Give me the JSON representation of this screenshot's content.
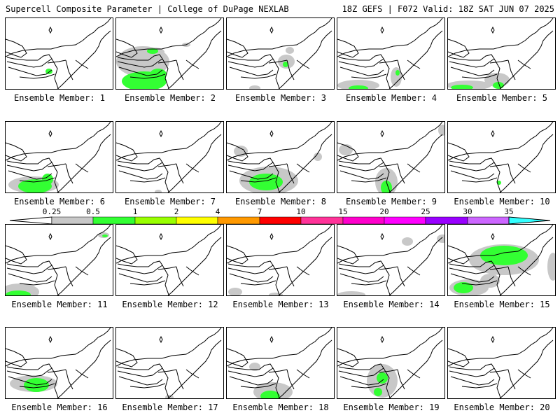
{
  "header": {
    "left": "Supercell Composite Parameter | College of DuPage NEXLAB",
    "right": "18Z GEFS | F072 Valid: 18Z SAT JUN 07 2025"
  },
  "colors": {
    "map_line": "#000000",
    "gray": "#c8c8c8",
    "green": "#33ff33",
    "yellow_green": "#99ff00",
    "yellow": "#ffff33",
    "orange": "#ff9900",
    "red": "#ff0000",
    "magenta": "#ff33cc"
  },
  "colorbar": {
    "labels": [
      "0.25",
      "0.5",
      "1",
      "2",
      "4",
      "7",
      "10",
      "15",
      "20",
      "25",
      "30",
      "35"
    ],
    "colors": [
      "#ffffff",
      "#c8c8c8",
      "#33ff33",
      "#99ff00",
      "#ffff00",
      "#ff9900",
      "#ff0000",
      "#ff3399",
      "#ff00cc",
      "#ff00ff",
      "#9900ff",
      "#cc66ff",
      "#33ffff"
    ]
  },
  "panels": [
    {
      "label": "Ensemble Member: 1",
      "shades": [
        {
          "c": "green",
          "x": 62,
          "y": 76,
          "rx": 5,
          "ry": 4
        }
      ]
    },
    {
      "label": "Ensemble Member: 2",
      "shades": [
        {
          "c": "gray",
          "x": 38,
          "y": 62,
          "rx": 38,
          "ry": 22
        },
        {
          "c": "green",
          "x": 40,
          "y": 90,
          "rx": 32,
          "ry": 14
        },
        {
          "c": "green",
          "x": 60,
          "y": 80,
          "rx": 12,
          "ry": 8
        },
        {
          "c": "gray",
          "x": 55,
          "y": 48,
          "rx": 14,
          "ry": 6
        },
        {
          "c": "green",
          "x": 52,
          "y": 47,
          "rx": 8,
          "ry": 4
        },
        {
          "c": "gray",
          "x": 100,
          "y": 38,
          "rx": 6,
          "ry": 3
        }
      ]
    },
    {
      "label": "Ensemble Member: 3",
      "shades": [
        {
          "c": "gray",
          "x": 85,
          "y": 62,
          "rx": 12,
          "ry": 10
        },
        {
          "c": "green",
          "x": 84,
          "y": 66,
          "rx": 4,
          "ry": 4
        },
        {
          "c": "gray",
          "x": 40,
          "y": 100,
          "rx": 8,
          "ry": 4
        },
        {
          "c": "gray",
          "x": 90,
          "y": 46,
          "rx": 6,
          "ry": 5
        }
      ]
    },
    {
      "label": "Ensemble Member: 4",
      "shades": [
        {
          "c": "gray",
          "x": 30,
          "y": 96,
          "rx": 30,
          "ry": 8
        },
        {
          "c": "green",
          "x": 30,
          "y": 100,
          "rx": 14,
          "ry": 4
        },
        {
          "c": "gray",
          "x": 84,
          "y": 84,
          "rx": 8,
          "ry": 14
        },
        {
          "c": "green",
          "x": 86,
          "y": 78,
          "rx": 3,
          "ry": 4
        }
      ]
    },
    {
      "label": "Ensemble Member: 5",
      "shades": [
        {
          "c": "gray",
          "x": 30,
          "y": 96,
          "rx": 32,
          "ry": 7
        },
        {
          "c": "green",
          "x": 20,
          "y": 99,
          "rx": 16,
          "ry": 4
        },
        {
          "c": "gray",
          "x": 70,
          "y": 88,
          "rx": 18,
          "ry": 10
        },
        {
          "c": "green",
          "x": 72,
          "y": 96,
          "rx": 8,
          "ry": 5
        }
      ]
    },
    {
      "label": "Ensemble Member: 6",
      "shades": [
        {
          "c": "gray",
          "x": 40,
          "y": 90,
          "rx": 36,
          "ry": 12
        },
        {
          "c": "green",
          "x": 42,
          "y": 92,
          "rx": 24,
          "ry": 10
        },
        {
          "c": "green",
          "x": 60,
          "y": 82,
          "rx": 8,
          "ry": 8
        }
      ]
    },
    {
      "label": "Ensemble Member: 7",
      "shades": [
        {
          "c": "gray",
          "x": 60,
          "y": 100,
          "rx": 5,
          "ry": 3
        }
      ]
    },
    {
      "label": "Ensemble Member: 8",
      "shades": [
        {
          "c": "gray",
          "x": 60,
          "y": 84,
          "rx": 42,
          "ry": 20
        },
        {
          "c": "green",
          "x": 56,
          "y": 86,
          "rx": 24,
          "ry": 12
        },
        {
          "c": "gray",
          "x": 20,
          "y": 42,
          "rx": 10,
          "ry": 8
        },
        {
          "c": "gray",
          "x": 130,
          "y": 50,
          "rx": 6,
          "ry": 6
        }
      ]
    },
    {
      "label": "Ensemble Member: 9",
      "shades": [
        {
          "c": "gray",
          "x": 70,
          "y": 86,
          "rx": 16,
          "ry": 20
        },
        {
          "c": "green",
          "x": 70,
          "y": 94,
          "rx": 8,
          "ry": 10
        },
        {
          "c": "gray",
          "x": 12,
          "y": 40,
          "rx": 10,
          "ry": 8
        },
        {
          "c": "gray",
          "x": 150,
          "y": 12,
          "rx": 6,
          "ry": 8
        }
      ]
    },
    {
      "label": "Ensemble Member: 10",
      "shades": [
        {
          "c": "green",
          "x": 73,
          "y": 87,
          "rx": 3,
          "ry": 3
        }
      ]
    },
    {
      "label": "Ensemble Member: 11",
      "shades": [
        {
          "c": "gray",
          "x": 20,
          "y": 96,
          "rx": 28,
          "ry": 12
        },
        {
          "c": "green",
          "x": 18,
          "y": 100,
          "rx": 18,
          "ry": 6
        },
        {
          "c": "gray",
          "x": 140,
          "y": 15,
          "rx": 8,
          "ry": 4
        },
        {
          "c": "green",
          "x": 142,
          "y": 16,
          "rx": 4,
          "ry": 2
        }
      ]
    },
    {
      "label": "Ensemble Member: 12",
      "shades": []
    },
    {
      "label": "Ensemble Member: 13",
      "shades": [
        {
          "c": "gray",
          "x": 12,
          "y": 96,
          "rx": 10,
          "ry": 6
        },
        {
          "c": "gray",
          "x": 70,
          "y": 100,
          "rx": 10,
          "ry": 3
        }
      ]
    },
    {
      "label": "Ensemble Member: 14",
      "shades": [
        {
          "c": "gray",
          "x": 20,
          "y": 100,
          "rx": 20,
          "ry": 5
        },
        {
          "c": "gray",
          "x": 100,
          "y": 24,
          "rx": 8,
          "ry": 6
        },
        {
          "c": "gray",
          "x": 150,
          "y": 20,
          "rx": 8,
          "ry": 6
        }
      ]
    },
    {
      "label": "Ensemble Member: 15",
      "shades": [
        {
          "c": "gray",
          "x": 80,
          "y": 50,
          "rx": 50,
          "ry": 22
        },
        {
          "c": "green",
          "x": 80,
          "y": 44,
          "rx": 34,
          "ry": 14
        },
        {
          "c": "gray",
          "x": 30,
          "y": 90,
          "rx": 28,
          "ry": 12
        },
        {
          "c": "green",
          "x": 22,
          "y": 90,
          "rx": 14,
          "ry": 8
        },
        {
          "c": "gray",
          "x": 60,
          "y": 80,
          "rx": 14,
          "ry": 10
        },
        {
          "c": "gray",
          "x": 150,
          "y": 60,
          "rx": 8,
          "ry": 20
        }
      ]
    },
    {
      "label": "Ensemble Member: 16",
      "shades": [
        {
          "c": "gray",
          "x": 40,
          "y": 80,
          "rx": 34,
          "ry": 12
        },
        {
          "c": "green",
          "x": 44,
          "y": 82,
          "rx": 18,
          "ry": 10
        }
      ]
    },
    {
      "label": "Ensemble Member: 17",
      "shades": [
        {
          "c": "gray",
          "x": 76,
          "y": 100,
          "rx": 6,
          "ry": 4
        }
      ]
    },
    {
      "label": "Ensemble Member: 18",
      "shades": [
        {
          "c": "gray",
          "x": 66,
          "y": 92,
          "rx": 28,
          "ry": 14
        },
        {
          "c": "green",
          "x": 62,
          "y": 98,
          "rx": 14,
          "ry": 8
        },
        {
          "c": "gray",
          "x": 40,
          "y": 56,
          "rx": 8,
          "ry": 6
        }
      ]
    },
    {
      "label": "Ensemble Member: 19",
      "shades": [
        {
          "c": "gray",
          "x": 64,
          "y": 76,
          "rx": 22,
          "ry": 24
        },
        {
          "c": "green",
          "x": 64,
          "y": 72,
          "rx": 8,
          "ry": 8
        },
        {
          "c": "green",
          "x": 58,
          "y": 92,
          "rx": 6,
          "ry": 6
        }
      ]
    },
    {
      "label": "Ensemble Member: 20",
      "shades": []
    }
  ]
}
